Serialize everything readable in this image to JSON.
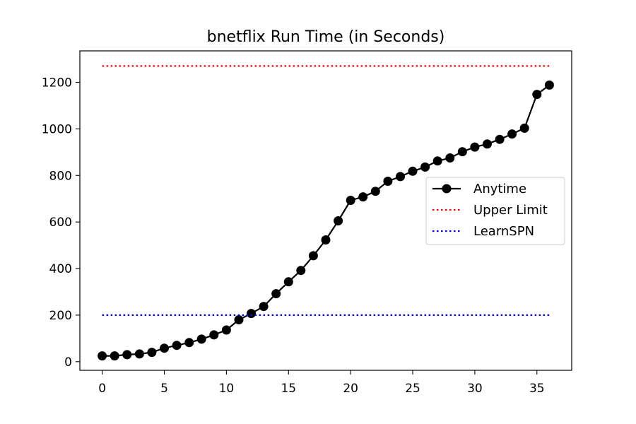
{
  "chart_data": {
    "type": "line",
    "title": "bnetflix Run Time (in Seconds)",
    "xlabel": "",
    "ylabel": "",
    "xlim": [
      -1.8,
      37.8
    ],
    "ylim": [
      -37,
      1335
    ],
    "x_ticks": [
      0,
      5,
      10,
      15,
      20,
      25,
      30,
      35
    ],
    "y_ticks": [
      0,
      200,
      400,
      600,
      800,
      1000,
      1200
    ],
    "grid": false,
    "legend_position": "center-right",
    "series": [
      {
        "name": "Anytime",
        "style": "solid-line-with-circle-markers",
        "color": "#000000",
        "x": [
          0,
          1,
          2,
          3,
          4,
          5,
          6,
          7,
          8,
          9,
          10,
          11,
          12,
          13,
          14,
          15,
          16,
          17,
          18,
          19,
          20,
          21,
          22,
          23,
          24,
          25,
          26,
          27,
          28,
          29,
          30,
          31,
          32,
          33,
          34,
          35,
          36
        ],
        "y": [
          25,
          25,
          30,
          33,
          40,
          58,
          70,
          82,
          97,
          115,
          136,
          180,
          207,
          237,
          292,
          343,
          392,
          455,
          523,
          605,
          693,
          708,
          732,
          775,
          795,
          818,
          836,
          862,
          875,
          902,
          922,
          935,
          955,
          978,
          1003,
          1148,
          1188
        ]
      },
      {
        "name": "Upper Limit",
        "style": "dotted",
        "color": "#ff0000",
        "x": [
          0,
          36
        ],
        "y": [
          1270,
          1270
        ]
      },
      {
        "name": "LearnSPN",
        "style": "dotted",
        "color": "#0000ff",
        "x": [
          0,
          36
        ],
        "y": [
          200,
          200
        ]
      }
    ]
  }
}
